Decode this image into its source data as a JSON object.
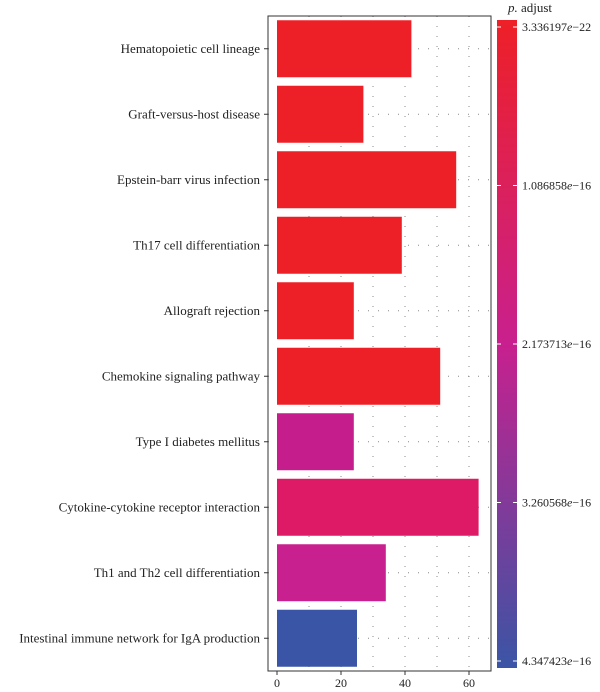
{
  "chart_data": {
    "type": "bar",
    "orientation": "horizontal",
    "categories": [
      "Hematopoietic cell lineage",
      "Graft-versus-host disease",
      "Epstein-barr virus infection",
      "Th17 cell differentiation",
      "Allograft rejection",
      "Chemokine signaling pathway",
      "Type I diabetes mellitus",
      "Cytokine-cytokine receptor interaction",
      "Th1 and Th2 cell differentiation",
      "Intestinal immune network for IgA production"
    ],
    "values": [
      42,
      27,
      56,
      39,
      24,
      51,
      24,
      63,
      34,
      25
    ],
    "bar_colors": [
      "#ee2027",
      "#ee2027",
      "#ee2027",
      "#ee2027",
      "#ee2027",
      "#ee2027",
      "#c51d8c",
      "#de1a66",
      "#c8208e",
      "#3a55a5"
    ],
    "xticks": [
      0,
      20,
      40,
      60
    ],
    "xlim": [
      -1,
      66
    ],
    "xlabel": "",
    "ylabel": "",
    "grid": true,
    "legend": {
      "title_prefix": "p.",
      "title_suffix": " adjust",
      "ticks": [
        {
          "mantissa": "3.336197",
          "exp": "−22"
        },
        {
          "mantissa": "1.086858",
          "exp": "−16"
        },
        {
          "mantissa": "2.173713",
          "exp": "−16"
        },
        {
          "mantissa": "3.260568",
          "exp": "−16"
        },
        {
          "mantissa": "4.347423",
          "exp": "−16"
        }
      ],
      "gradient_colors": [
        "#ee2027",
        "#c8208e",
        "#3a55a5"
      ],
      "placement": "right"
    }
  }
}
